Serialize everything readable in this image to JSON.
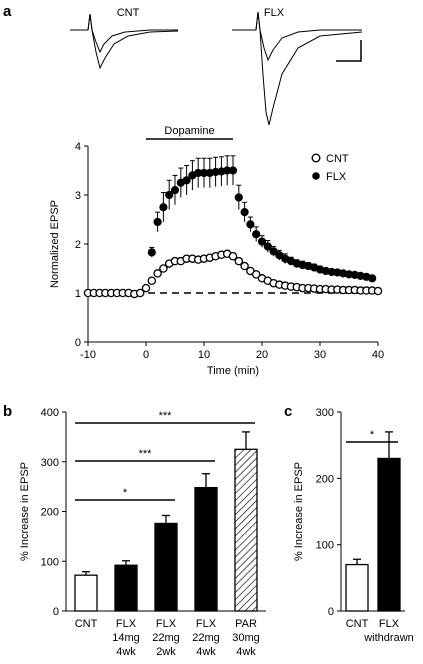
{
  "figure": {
    "panel_a_letter": "a",
    "panel_b_letter": "b",
    "panel_c_letter": "c",
    "trace_labels": [
      "CNT",
      "FLX"
    ]
  },
  "chart_data": [
    {
      "type": "line",
      "panel": "a",
      "xlabel": "Time (min)",
      "ylabel": "Normalized EPSP",
      "xlim": [
        -10,
        40
      ],
      "ylim": [
        0,
        4
      ],
      "xticks": [
        "-10",
        "0",
        "10",
        "20",
        "30",
        "40"
      ],
      "yticks": [
        "0",
        "1",
        "2",
        "3",
        "4"
      ],
      "annotation": "Dopamine",
      "annotation_range": [
        0,
        15
      ],
      "baseline": 1,
      "series": [
        {
          "name": "CNT",
          "marker": "open-circle",
          "x": [
            -10,
            -9,
            -8,
            -7,
            -6,
            -5,
            -4,
            -3,
            -2,
            -1,
            0,
            1,
            2,
            3,
            4,
            5,
            6,
            7,
            8,
            9,
            10,
            11,
            12,
            13,
            14,
            15,
            16,
            17,
            18,
            19,
            20,
            21,
            22,
            23,
            24,
            25,
            26,
            27,
            28,
            29,
            30,
            31,
            32,
            33,
            34,
            35,
            36,
            37,
            38,
            39,
            40
          ],
          "y": [
            1.0,
            1.0,
            1.0,
            1.0,
            1.0,
            1.0,
            1.0,
            1.0,
            0.98,
            1.0,
            1.1,
            1.25,
            1.4,
            1.5,
            1.6,
            1.65,
            1.65,
            1.7,
            1.7,
            1.68,
            1.7,
            1.72,
            1.75,
            1.78,
            1.8,
            1.75,
            1.65,
            1.55,
            1.45,
            1.38,
            1.3,
            1.25,
            1.2,
            1.17,
            1.15,
            1.13,
            1.12,
            1.1,
            1.1,
            1.09,
            1.08,
            1.08,
            1.07,
            1.07,
            1.06,
            1.06,
            1.06,
            1.05,
            1.05,
            1.05,
            1.04
          ],
          "err": [
            0.03,
            0.03,
            0.03,
            0.03,
            0.03,
            0.03,
            0.03,
            0.03,
            0.03,
            0.03,
            0.04,
            0.05,
            0.05,
            0.05,
            0.06,
            0.06,
            0.06,
            0.06,
            0.06,
            0.06,
            0.06,
            0.06,
            0.06,
            0.06,
            0.06,
            0.06,
            0.06,
            0.05,
            0.05,
            0.05,
            0.05,
            0.05,
            0.04,
            0.04,
            0.04,
            0.04,
            0.04,
            0.04,
            0.04,
            0.04,
            0.04,
            0.04,
            0.04,
            0.04,
            0.04,
            0.04,
            0.04,
            0.04,
            0.04,
            0.04,
            0.04
          ]
        },
        {
          "name": "FLX",
          "marker": "filled-circle",
          "x": [
            1,
            2,
            3,
            4,
            5,
            6,
            7,
            8,
            9,
            10,
            11,
            12,
            13,
            14,
            15,
            16,
            17,
            18,
            19,
            20,
            21,
            22,
            23,
            24,
            25,
            26,
            27,
            28,
            29,
            30,
            31,
            32,
            33,
            34,
            35,
            36,
            37,
            38,
            39
          ],
          "y": [
            1.83,
            2.45,
            2.75,
            3.0,
            3.1,
            3.25,
            3.3,
            3.4,
            3.45,
            3.45,
            3.45,
            3.47,
            3.48,
            3.5,
            3.5,
            2.95,
            2.65,
            2.4,
            2.2,
            2.05,
            1.95,
            1.85,
            1.77,
            1.7,
            1.65,
            1.6,
            1.57,
            1.55,
            1.52,
            1.48,
            1.45,
            1.43,
            1.42,
            1.4,
            1.38,
            1.37,
            1.35,
            1.33,
            1.3
          ],
          "err": [
            0.1,
            0.2,
            0.3,
            0.3,
            0.3,
            0.3,
            0.3,
            0.3,
            0.3,
            0.3,
            0.3,
            0.3,
            0.3,
            0.3,
            0.3,
            0.25,
            0.2,
            0.15,
            0.15,
            0.12,
            0.12,
            0.1,
            0.1,
            0.1,
            0.08,
            0.08,
            0.08,
            0.07,
            0.07,
            0.07,
            0.06,
            0.06,
            0.05,
            0.05,
            0.05,
            0.05,
            0.05,
            0.05,
            0.05
          ]
        }
      ]
    },
    {
      "type": "bar",
      "panel": "b",
      "ylabel": "% Increase in EPSP",
      "ylim": [
        0,
        400
      ],
      "yticks": [
        "0",
        "100",
        "200",
        "300",
        "400"
      ],
      "categories": [
        [
          "CNT"
        ],
        [
          "FLX",
          "14mg",
          "4wk"
        ],
        [
          "FLX",
          "22mg",
          "2wk"
        ],
        [
          "FLX",
          "22mg",
          "4wk"
        ],
        [
          "PAR",
          "30mg",
          "4wk"
        ]
      ],
      "values": [
        72,
        92,
        176,
        248,
        325
      ],
      "errors": [
        7,
        9,
        16,
        28,
        35
      ],
      "fills": [
        "open",
        "filled",
        "filled",
        "filled",
        "hatched"
      ],
      "significance": [
        {
          "label": "*",
          "from": 0,
          "to": 2
        },
        {
          "label": "***",
          "from": 0,
          "to": 3
        },
        {
          "label": "***",
          "from": 0,
          "to": 4
        }
      ]
    },
    {
      "type": "bar",
      "panel": "c",
      "ylabel": "% Increase in EPSP",
      "ylim": [
        0,
        300
      ],
      "yticks": [
        "0",
        "100",
        "200",
        "300"
      ],
      "categories": [
        [
          "CNT"
        ],
        [
          "FLX",
          "withdrawn"
        ]
      ],
      "values": [
        70,
        230
      ],
      "errors": [
        8,
        40
      ],
      "fills": [
        "open",
        "filled"
      ],
      "significance": [
        {
          "label": "*",
          "from": 0,
          "to": 1
        }
      ]
    }
  ]
}
